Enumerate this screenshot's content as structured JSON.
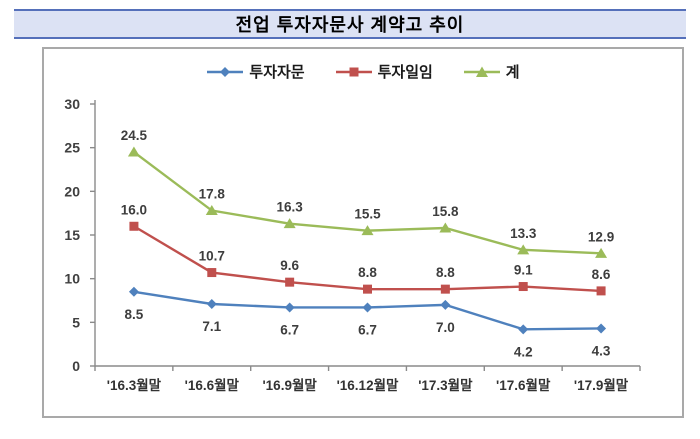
{
  "title": "전업 투자자문사 계약고 추이",
  "colors": {
    "banner_bg": "#dce2f4",
    "banner_border": "#5570ba",
    "frame_border": "#a9a9a9",
    "axis": "#8a8a8a",
    "blue_series": "#4F81BD",
    "red_series": "#C0504D",
    "green_series": "#9BBB59"
  },
  "chart_data": {
    "type": "line",
    "title": "전업 투자자문사 계약고 추이",
    "categories": [
      "'16.3월말",
      "'16.6월말",
      "'16.9월말",
      "'16.12월말",
      "'17.3월말",
      "'17.6월말",
      "'17.9월말"
    ],
    "series": [
      {
        "key": "advisory",
        "name": "투자자문",
        "color": "#4F81BD",
        "marker": "diamond",
        "label_position": "below",
        "values": [
          8.5,
          7.1,
          6.7,
          6.7,
          7.0,
          4.2,
          4.3
        ]
      },
      {
        "key": "discretionary",
        "name": "투자일임",
        "color": "#C0504D",
        "marker": "square",
        "label_position": "above",
        "values": [
          16.0,
          10.7,
          9.6,
          8.8,
          8.8,
          9.1,
          8.6
        ]
      },
      {
        "key": "total",
        "name": "계",
        "color": "#9BBB59",
        "marker": "triangle",
        "label_position": "above",
        "values": [
          24.5,
          17.8,
          16.3,
          15.5,
          15.8,
          13.3,
          12.9
        ]
      }
    ],
    "xlabel": "",
    "ylabel": "",
    "ylim": [
      0,
      30
    ],
    "yticks": [
      0,
      5,
      10,
      15,
      20,
      25,
      30
    ],
    "grid": false,
    "legend_position": "top",
    "data_labels": true,
    "label_decimals": 1
  }
}
